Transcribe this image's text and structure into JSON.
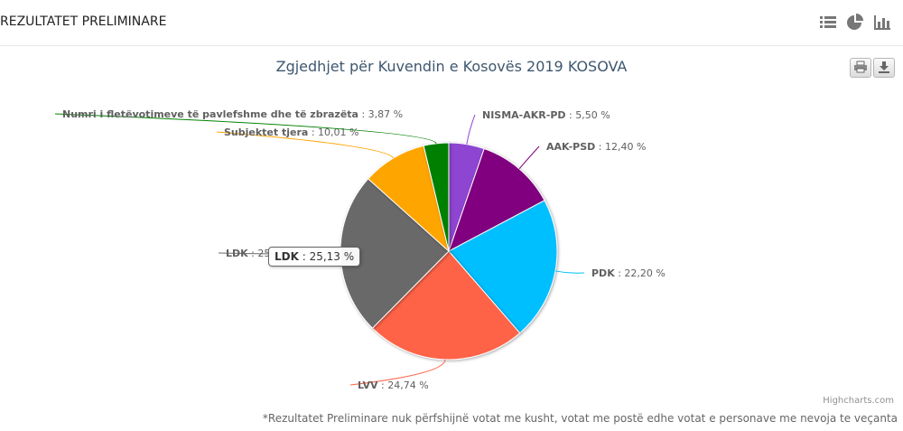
{
  "header": {
    "title": "REZULTATET PRELIMINARE"
  },
  "view_icons": [
    "list-icon",
    "pie-icon",
    "bar-icon"
  ],
  "export_icons": [
    "print-icon",
    "download-icon"
  ],
  "chart_data": {
    "type": "pie",
    "title": "Zgjedhjet për Kuvendin e Kosovës 2019 KOSOVA",
    "series": [
      {
        "name": "NISMA-AKR-PD",
        "value": 5.5,
        "label": "5,50 %",
        "color": "#8e44d1"
      },
      {
        "name": "AAK-PSD",
        "value": 12.4,
        "label": "12,40 %",
        "color": "#800080"
      },
      {
        "name": "PDK",
        "value": 22.2,
        "label": "22,20 %",
        "color": "#00bfff"
      },
      {
        "name": "LVV",
        "value": 24.74,
        "label": "24,74 %",
        "color": "#ff6347"
      },
      {
        "name": "LDK",
        "value": 25.13,
        "label": "25,13 %",
        "color": "#696969"
      },
      {
        "name": "Subjektet tjera",
        "value": 10.01,
        "label": "10,01 %",
        "color": "#ffa500"
      },
      {
        "name": "Numri i fletëvotimeve të pavlefshme dhe të zbrazëta",
        "value": 3.87,
        "label": "3,87 %",
        "color": "#008000"
      }
    ]
  },
  "tooltip": {
    "name": "LDK",
    "value": "25,13 %"
  },
  "credits": "Highcharts.com",
  "footnote": "*Rezultatet Preliminare nuk përfshijnë votat me kusht, votat me postë edhe votat e personave me nevoja te veçanta"
}
